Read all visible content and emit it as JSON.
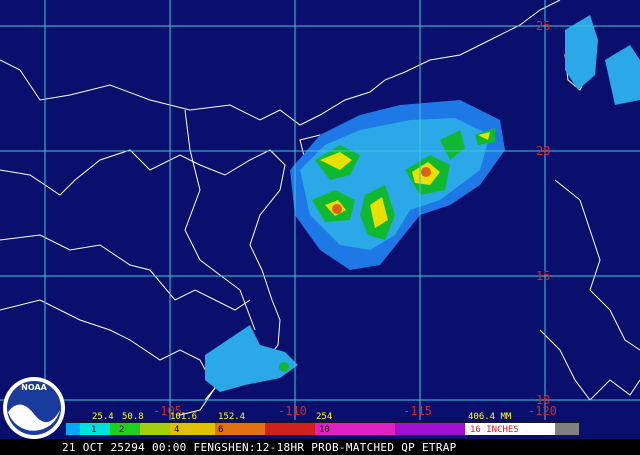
{
  "map": {
    "lat_labels": [
      "25",
      "20",
      "15",
      "10"
    ],
    "lon_labels": [
      "-105",
      "-110",
      "-115",
      "-120"
    ],
    "legend": {
      "mm": [
        "25.4",
        "50.8",
        "101.6",
        "152.4",
        "254",
        "406.4 MM"
      ],
      "inches": [
        "1",
        "2",
        "4",
        "6",
        "10",
        "16 INCHES"
      ]
    },
    "logo": "NOAA",
    "caption": "21 OCT 25294 00:00 FENGSHEN:12-18HR PROB-MATCHED QP ETRAP"
  }
}
